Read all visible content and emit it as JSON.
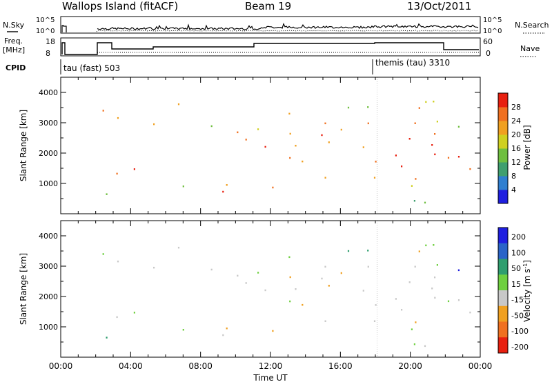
{
  "header": {
    "site": "Wallops Island (fitACF)",
    "beam": "Beam 19",
    "date": "13/Oct/2011"
  },
  "panels": {
    "nsky": {
      "label": "N.Sky",
      "left_ticks": [
        "10^5",
        "10^0"
      ],
      "right_ticks": [
        "10^5",
        "10^0"
      ],
      "right_label": "N.Search"
    },
    "freq": {
      "label_line1": "Freq.",
      "label_line2": "[MHz]",
      "left_ticks": [
        "18",
        "8"
      ],
      "right_ticks": [
        "60",
        "0"
      ],
      "right_label": "Nave"
    },
    "cpid": {
      "label": "CPID",
      "programs": [
        "tau (fast) 503",
        "themis (tau) 3310"
      ]
    }
  },
  "colors": {
    "power": [
      "#1f1fe0",
      "#2f7fd0",
      "#3f9f6f",
      "#6fbf3f",
      "#cfd020",
      "#f0a020",
      "#f07020",
      "#e82010"
    ],
    "velocity": [
      "#1f1fe0",
      "#2a64c8",
      "#2f9e6f",
      "#6fd040",
      "#c8c8c8",
      "#f0a020",
      "#f07020",
      "#e82010"
    ]
  },
  "chart_data": [
    {
      "type": "heatmap",
      "xlabel": "Time UT",
      "ylabel": "Slant Range [km]",
      "x_ticks": [
        "00:00",
        "04:00",
        "08:00",
        "12:00",
        "16:00",
        "20:00",
        "00:00"
      ],
      "y_ticks": [
        "1000",
        "2000",
        "3000",
        "4000"
      ],
      "ylim": [
        0,
        4500
      ],
      "colorbar": {
        "label": "Power [dB]",
        "ticks": [
          "4",
          "8",
          "12",
          "16",
          "20",
          "24",
          "28"
        ]
      }
    },
    {
      "type": "heatmap",
      "xlabel": "Time UT",
      "ylabel": "Slant Range [km]",
      "x_ticks": [
        "00:00",
        "04:00",
        "08:00",
        "12:00",
        "16:00",
        "20:00",
        "00:00"
      ],
      "y_ticks": [
        "1000",
        "2000",
        "3000",
        "4000"
      ],
      "ylim": [
        0,
        4500
      ],
      "colorbar": {
        "label_main": "Velocity [m s",
        "label_sup": "-1",
        "label_end": "]",
        "ticks": [
          "200",
          "100",
          "50",
          "15",
          "-15",
          "-50",
          "-100",
          "-200"
        ]
      }
    }
  ]
}
